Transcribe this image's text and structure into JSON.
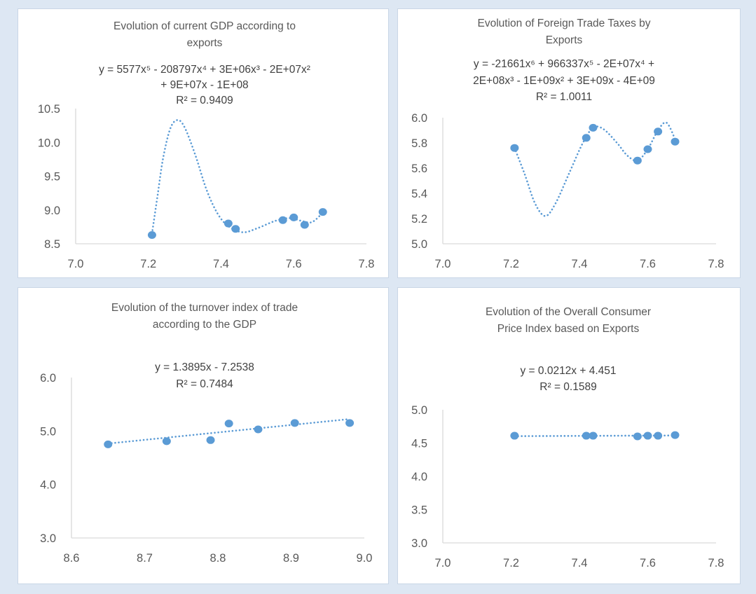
{
  "colors": {
    "marker": "#5b9bd5",
    "axis": "#d9d9d9",
    "text": "#595959",
    "background": "#dde7f3"
  },
  "chart_data": [
    {
      "type": "scatter",
      "title": [
        "Evolution of current GDP according to",
        "exports"
      ],
      "trendline_type": "polynomial order 5, dotted",
      "equation": [
        "y = 5577x⁵ - 208797x⁴ + 3E+06x³ - 2E+07x²",
        "+ 9E+07x - 1E+08"
      ],
      "r2": "R² = 0.9409",
      "xlim": [
        7.0,
        7.8
      ],
      "ylim": [
        8.5,
        10.5
      ],
      "xticks": [
        "7.0",
        "7.2",
        "7.4",
        "7.6",
        "7.8"
      ],
      "yticks": [
        "8.5",
        "9.0",
        "9.5",
        "10.0",
        "10.5"
      ],
      "x": [
        7.21,
        7.42,
        7.44,
        7.57,
        7.6,
        7.63,
        7.68
      ],
      "y": [
        8.63,
        8.8,
        8.72,
        8.85,
        8.89,
        8.78,
        8.97
      ],
      "trendline_points": [
        [
          7.21,
          8.65
        ],
        [
          7.225,
          9.2
        ],
        [
          7.24,
          9.75
        ],
        [
          7.26,
          10.2
        ],
        [
          7.28,
          10.33
        ],
        [
          7.3,
          10.22
        ],
        [
          7.33,
          9.8
        ],
        [
          7.36,
          9.3
        ],
        [
          7.39,
          8.95
        ],
        [
          7.42,
          8.76
        ],
        [
          7.46,
          8.67
        ],
        [
          7.5,
          8.73
        ],
        [
          7.55,
          8.84
        ],
        [
          7.59,
          8.88
        ],
        [
          7.62,
          8.84
        ],
        [
          7.65,
          8.82
        ],
        [
          7.68,
          8.96
        ]
      ],
      "grid": false,
      "legend": "none"
    },
    {
      "type": "scatter",
      "title": [
        "Evolution of Foreign Trade Taxes by",
        "Exports"
      ],
      "trendline_type": "polynomial order 6, dotted",
      "equation": [
        "y = -21661x⁶ + 966337x⁵ - 2E+07x⁴ +",
        "2E+08x³ - 1E+09x² + 3E+09x - 4E+09"
      ],
      "r2": "R² = 1.0011",
      "xlim": [
        7.0,
        7.8
      ],
      "ylim": [
        5.0,
        6.0
      ],
      "xticks": [
        "7.0",
        "7.2",
        "7.4",
        "7.6",
        "7.8"
      ],
      "yticks": [
        "5.0",
        "5.2",
        "5.4",
        "5.6",
        "5.8",
        "6.0"
      ],
      "x": [
        7.21,
        7.42,
        7.44,
        7.57,
        7.6,
        7.63,
        7.68
      ],
      "y": [
        5.76,
        5.84,
        5.92,
        5.66,
        5.75,
        5.89,
        5.81
      ],
      "trendline_points": [
        [
          7.21,
          5.76
        ],
        [
          7.24,
          5.55
        ],
        [
          7.27,
          5.32
        ],
        [
          7.3,
          5.22
        ],
        [
          7.33,
          5.32
        ],
        [
          7.37,
          5.56
        ],
        [
          7.41,
          5.8
        ],
        [
          7.44,
          5.92
        ],
        [
          7.47,
          5.91
        ],
        [
          7.51,
          5.8
        ],
        [
          7.54,
          5.7
        ],
        [
          7.57,
          5.66
        ],
        [
          7.6,
          5.75
        ],
        [
          7.63,
          5.9
        ],
        [
          7.655,
          5.96
        ],
        [
          7.68,
          5.83
        ]
      ],
      "grid": false,
      "legend": "none"
    },
    {
      "type": "scatter",
      "title": [
        "Evolution of the turnover index of trade",
        "according to the GDP"
      ],
      "trendline_type": "linear, dotted",
      "equation": [
        "y = 1.3895x - 7.2538"
      ],
      "r2": "R² = 0.7484",
      "slope": 1.3895,
      "intercept": -7.2538,
      "xlim": [
        8.6,
        9.0
      ],
      "ylim": [
        3.0,
        6.0
      ],
      "xticks": [
        "8.6",
        "8.7",
        "8.8",
        "8.9",
        "9.0"
      ],
      "yticks": [
        "3.0",
        "4.0",
        "5.0",
        "6.0"
      ],
      "x": [
        8.65,
        8.73,
        8.79,
        8.815,
        8.855,
        8.905,
        8.98
      ],
      "y": [
        4.75,
        4.81,
        4.83,
        5.14,
        5.03,
        5.15,
        5.15
      ],
      "grid": false,
      "legend": "none"
    },
    {
      "type": "scatter",
      "title": [
        "Evolution of the Overall Consumer",
        "Price Index based on Exports"
      ],
      "trendline_type": "linear, dotted",
      "equation": [
        "y = 0.0212x + 4.451"
      ],
      "r2": "R² = 0.1589",
      "slope": 0.0212,
      "intercept": 4.451,
      "xlim": [
        7.0,
        7.8
      ],
      "ylim": [
        3.0,
        5.0
      ],
      "xticks": [
        "7.0",
        "7.2",
        "7.4",
        "7.6",
        "7.8"
      ],
      "yticks": [
        "3.0",
        "3.5",
        "4.0",
        "4.5",
        "5.0"
      ],
      "x": [
        7.21,
        7.42,
        7.44,
        7.57,
        7.6,
        7.63,
        7.68
      ],
      "y": [
        4.61,
        4.61,
        4.61,
        4.6,
        4.61,
        4.61,
        4.62
      ],
      "grid": false,
      "legend": "none"
    }
  ]
}
